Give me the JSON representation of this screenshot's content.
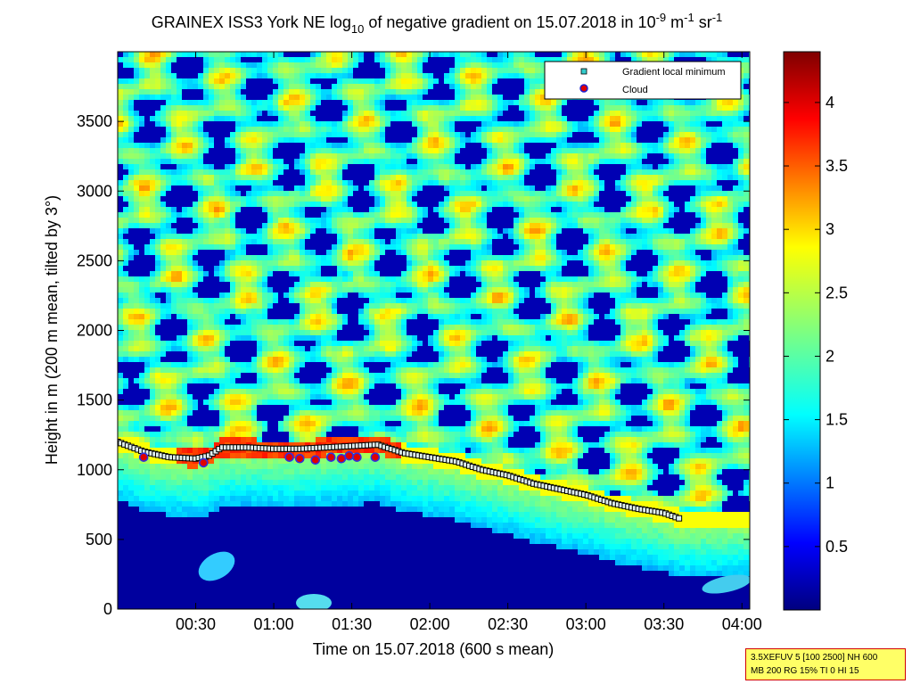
{
  "chart_data": {
    "type": "heatmap",
    "title": "GRAINEX ISS3 York NE log10 of negative gradient on 15.07.2018 in 10-9 m-1 sr-1",
    "title_parts": {
      "a": "GRAINEX ISS3 York NE log",
      "sub10": "10",
      "b": " of negative gradient on 15.07.2018 in 10",
      "sup_m9": "-9",
      "c": " m",
      "sup_m1a": "-1",
      "d": " sr",
      "sup_m1b": "-1"
    },
    "xlabel": "Time on 15.07.2018 (600 s mean)",
    "ylabel": "Height in m (200 m mean, tilted by 3°)",
    "x_ticks": [
      "00:30",
      "01:00",
      "01:30",
      "02:00",
      "02:30",
      "03:00",
      "03:30",
      "04:00"
    ],
    "x_tick_minutes": [
      30,
      60,
      90,
      120,
      150,
      180,
      210,
      240
    ],
    "xlim_minutes": [
      0,
      243
    ],
    "y_ticks": [
      0,
      500,
      1000,
      1500,
      2000,
      2500,
      3000,
      3500
    ],
    "ylim": [
      0,
      4000
    ],
    "colorbar": {
      "ticks": [
        0.5,
        1,
        1.5,
        2,
        2.5,
        3,
        3.5,
        4
      ],
      "range": [
        0,
        4.4
      ],
      "colormap": "jet"
    },
    "legend": {
      "placement": "top-right",
      "entries": [
        "Gradient local minimum",
        "Cloud"
      ]
    },
    "series": [
      {
        "name": "Gradient local minimum",
        "x_minutes": [
          0,
          10,
          20,
          30,
          35,
          40,
          50,
          60,
          70,
          80,
          90,
          100,
          110,
          120,
          130,
          140,
          150,
          160,
          170,
          180,
          190,
          200,
          210,
          216
        ],
        "y_m": [
          1200,
          1130,
          1090,
          1080,
          1100,
          1160,
          1160,
          1150,
          1150,
          1160,
          1170,
          1180,
          1120,
          1090,
          1060,
          1000,
          960,
          900,
          860,
          820,
          760,
          720,
          690,
          650
        ]
      },
      {
        "name": "Cloud",
        "x_minutes": [
          10,
          33,
          66,
          70,
          76,
          82,
          86,
          89,
          92,
          99
        ],
        "y_m": [
          1090,
          1050,
          1090,
          1080,
          1070,
          1090,
          1080,
          1100,
          1090,
          1090
        ]
      }
    ]
  },
  "infobox": {
    "line1": "3.5XEFUV 5 [100 2500] NH 600",
    "line2": "MB 200 RG 15% TI 0 HI 15"
  }
}
